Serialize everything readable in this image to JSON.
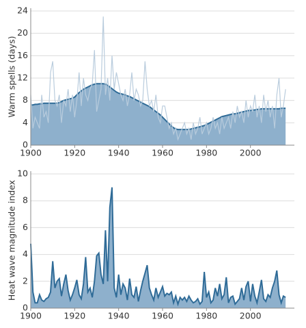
{
  "chart_data": [
    {
      "type": "area",
      "ylabel": "Warm spells (days)",
      "x": [
        1900,
        1901,
        1902,
        1903,
        1904,
        1905,
        1906,
        1907,
        1908,
        1909,
        1910,
        1911,
        1912,
        1913,
        1914,
        1915,
        1916,
        1917,
        1918,
        1919,
        1920,
        1921,
        1922,
        1923,
        1924,
        1925,
        1926,
        1927,
        1928,
        1929,
        1930,
        1931,
        1932,
        1933,
        1934,
        1935,
        1936,
        1937,
        1938,
        1939,
        1940,
        1941,
        1942,
        1943,
        1944,
        1945,
        1946,
        1947,
        1948,
        1949,
        1950,
        1951,
        1952,
        1953,
        1954,
        1955,
        1956,
        1957,
        1958,
        1959,
        1960,
        1961,
        1962,
        1963,
        1964,
        1965,
        1966,
        1967,
        1968,
        1969,
        1970,
        1971,
        1972,
        1973,
        1974,
        1975,
        1976,
        1977,
        1978,
        1979,
        1980,
        1981,
        1982,
        1983,
        1984,
        1985,
        1986,
        1987,
        1988,
        1989,
        1990,
        1991,
        1992,
        1993,
        1994,
        1995,
        1996,
        1997,
        1998,
        1999,
        2000,
        2001,
        2002,
        2003,
        2004,
        2005,
        2006,
        2007,
        2008,
        2009,
        2010,
        2011,
        2012,
        2013,
        2014,
        2015,
        2016
      ],
      "series": [
        {
          "color": "#b9ccdd",
          "fill": false,
          "values": [
            9,
            3,
            5,
            4,
            3,
            9,
            5,
            6,
            4,
            13,
            15,
            8,
            7,
            9,
            4,
            8,
            7,
            10,
            6,
            9,
            5,
            8,
            13,
            7,
            12,
            9,
            8,
            10,
            11,
            17,
            6,
            8,
            10,
            23,
            9,
            12,
            8,
            16,
            10,
            13,
            11,
            9,
            8,
            10,
            7,
            9,
            13,
            8,
            10,
            9,
            7,
            8,
            15,
            10,
            7,
            8,
            6,
            9,
            5,
            4,
            7,
            7,
            5,
            3,
            4,
            2,
            3,
            1,
            2,
            3,
            4,
            2,
            3,
            1,
            4,
            2,
            3,
            5,
            2,
            3,
            4,
            2,
            3,
            5,
            3,
            4,
            2,
            5,
            3,
            4,
            5,
            3,
            6,
            4,
            7,
            5,
            6,
            4,
            8,
            5,
            7,
            6,
            9,
            5,
            7,
            4,
            9,
            6,
            8,
            5,
            7,
            3,
            9,
            12,
            5,
            7,
            10
          ]
        },
        {
          "color": "#2f6b97",
          "fill": true,
          "fill_color": "#8eb0cc",
          "values": [
            7.2,
            7.2,
            7.3,
            7.3,
            7.4,
            7.4,
            7.5,
            7.5,
            7.5,
            7.5,
            7.5,
            7.5,
            7.5,
            7.6,
            7.8,
            8.0,
            8.1,
            8.2,
            8.3,
            8.4,
            8.6,
            9.0,
            9.4,
            9.7,
            10.0,
            10.2,
            10.4,
            10.6,
            10.8,
            10.9,
            11.0,
            11.0,
            11.0,
            11.0,
            10.9,
            10.7,
            10.4,
            10.1,
            9.8,
            9.5,
            9.3,
            9.2,
            9.1,
            9.0,
            8.8,
            8.7,
            8.5,
            8.3,
            8.1,
            7.9,
            7.7,
            7.5,
            7.3,
            7.1,
            6.9,
            6.6,
            6.3,
            6.0,
            5.7,
            5.4,
            5.0,
            4.6,
            4.2,
            3.8,
            3.4,
            3.1,
            2.9,
            2.8,
            2.8,
            2.8,
            2.8,
            2.8,
            2.8,
            2.9,
            3.0,
            3.1,
            3.2,
            3.3,
            3.4,
            3.5,
            3.7,
            3.9,
            4.1,
            4.3,
            4.5,
            4.7,
            4.9,
            5.1,
            5.2,
            5.3,
            5.4,
            5.5,
            5.6,
            5.6,
            5.7,
            5.8,
            5.9,
            6.0,
            6.1,
            6.2,
            6.2,
            6.3,
            6.3,
            6.4,
            6.4,
            6.5,
            6.5,
            6.5,
            6.5,
            6.5,
            6.5,
            6.5,
            6.5,
            6.5,
            6.6,
            6.6,
            6.6
          ]
        }
      ],
      "xlim": [
        1900,
        2020
      ],
      "xticks": [
        1900,
        1920,
        1940,
        1960,
        1980,
        2000
      ],
      "ylim": [
        0,
        24
      ],
      "yticks": [
        0,
        4,
        8,
        12,
        16,
        20,
        24
      ],
      "grid": true
    },
    {
      "type": "area",
      "ylabel": "Heat wave magnitude index",
      "x": [
        1900,
        1901,
        1902,
        1903,
        1904,
        1905,
        1906,
        1907,
        1908,
        1909,
        1910,
        1911,
        1912,
        1913,
        1914,
        1915,
        1916,
        1917,
        1918,
        1919,
        1920,
        1921,
        1922,
        1923,
        1924,
        1925,
        1926,
        1927,
        1928,
        1929,
        1930,
        1931,
        1932,
        1933,
        1934,
        1935,
        1936,
        1937,
        1938,
        1939,
        1940,
        1941,
        1942,
        1943,
        1944,
        1945,
        1946,
        1947,
        1948,
        1949,
        1950,
        1951,
        1952,
        1953,
        1954,
        1955,
        1956,
        1957,
        1958,
        1959,
        1960,
        1961,
        1962,
        1963,
        1964,
        1965,
        1966,
        1967,
        1968,
        1969,
        1970,
        1971,
        1972,
        1973,
        1974,
        1975,
        1976,
        1977,
        1978,
        1979,
        1980,
        1981,
        1982,
        1983,
        1984,
        1985,
        1986,
        1987,
        1988,
        1989,
        1990,
        1991,
        1992,
        1993,
        1994,
        1995,
        1996,
        1997,
        1998,
        1999,
        2000,
        2001,
        2002,
        2003,
        2004,
        2005,
        2006,
        2007,
        2008,
        2009,
        2010,
        2011,
        2012,
        2013,
        2014,
        2015,
        2016
      ],
      "series": [
        {
          "color": "#2f6b97",
          "fill": true,
          "fill_color": "#8eb0cc",
          "values": [
            4.8,
            1.2,
            0.4,
            0.4,
            1.0,
            0.6,
            0.5,
            0.7,
            0.8,
            1.2,
            3.5,
            1.5,
            2.0,
            2.2,
            0.9,
            1.8,
            2.5,
            1.3,
            0.6,
            1.0,
            1.5,
            2.1,
            1.0,
            0.7,
            1.8,
            3.8,
            1.2,
            1.5,
            0.8,
            2.0,
            3.9,
            4.1,
            2.5,
            1.8,
            5.8,
            2.0,
            7.5,
            9.0,
            1.5,
            0.8,
            2.5,
            1.0,
            1.8,
            1.5,
            0.6,
            2.2,
            1.0,
            0.8,
            1.6,
            0.5,
            1.3,
            2.0,
            2.6,
            3.2,
            1.5,
            1.0,
            0.6,
            1.5,
            0.8,
            1.2,
            1.6,
            0.9,
            1.1,
            1.0,
            1.2,
            0.4,
            0.9,
            0.3,
            0.8,
            0.6,
            0.8,
            0.5,
            0.9,
            0.6,
            0.4,
            0.5,
            0.7,
            0.3,
            0.5,
            2.7,
            0.8,
            1.2,
            0.4,
            0.6,
            1.5,
            0.9,
            1.8,
            0.7,
            1.0,
            2.3,
            0.4,
            0.8,
            0.9,
            0.3,
            0.5,
            0.7,
            1.5,
            0.6,
            1.6,
            2.0,
            0.5,
            1.8,
            0.9,
            0.4,
            1.2,
            2.1,
            0.7,
            0.5,
            1.0,
            0.8,
            1.5,
            2.0,
            2.8,
            1.0,
            0.4,
            0.9,
            0.8
          ]
        }
      ],
      "xlim": [
        1900,
        2020
      ],
      "xticks": [
        1900,
        1920,
        1940,
        1960,
        1980,
        2000
      ],
      "ylim": [
        0,
        10
      ],
      "yticks": [
        0,
        2,
        4,
        6,
        8,
        10
      ],
      "grid": true
    }
  ]
}
